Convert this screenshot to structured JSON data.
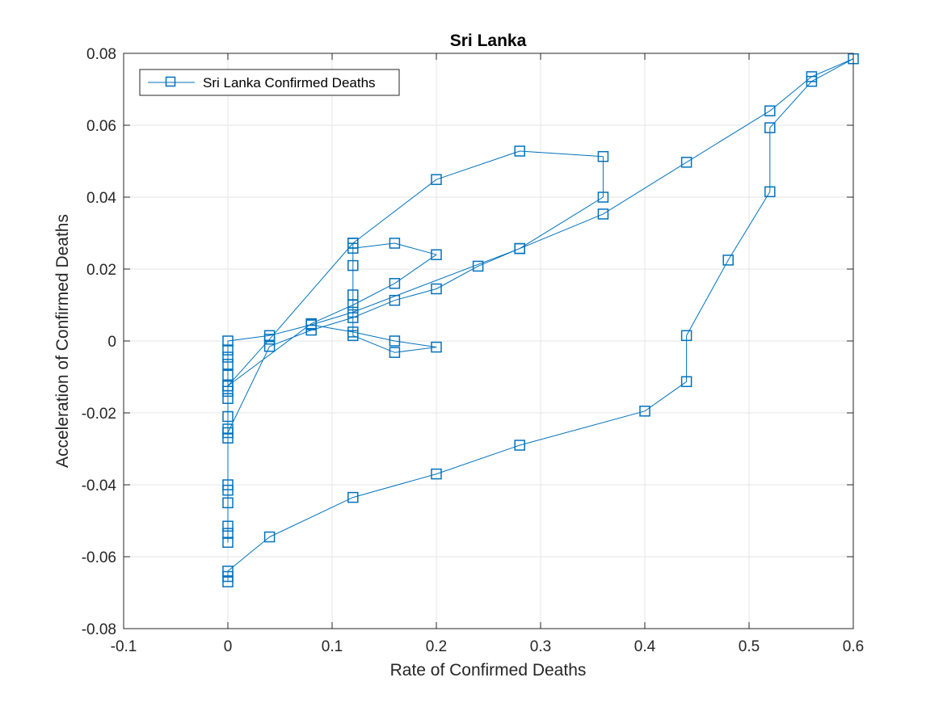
{
  "chart_data": {
    "type": "line",
    "title": "Sri Lanka",
    "xlabel": "Rate of Confirmed Deaths",
    "ylabel": "Acceleration of Confirmed Deaths",
    "xlim": [
      -0.1,
      0.6
    ],
    "ylim": [
      -0.08,
      0.08
    ],
    "x_ticks": [
      -0.1,
      0,
      0.1,
      0.2,
      0.3,
      0.4,
      0.5,
      0.6
    ],
    "x_tick_labels": [
      "-0.1",
      "0",
      "0.1",
      "0.2",
      "0.3",
      "0.4",
      "0.5",
      "0.6"
    ],
    "y_ticks": [
      -0.08,
      -0.06,
      -0.04,
      -0.02,
      0,
      0.02,
      0.04,
      0.06,
      0.08
    ],
    "y_tick_labels": [
      "-0.08",
      "-0.06",
      "-0.04",
      "-0.02",
      "0",
      "0.02",
      "0.04",
      "0.06",
      "0.08"
    ],
    "grid": true,
    "legend_position": "top-left",
    "marker": "square",
    "series_color": "#0072BD",
    "series": [
      {
        "name": "Sri Lanka Confirmed Deaths",
        "points": [
          [
            0,
            -0.067
          ],
          [
            0,
            -0.0655
          ],
          [
            0,
            -0.064
          ],
          [
            0.04,
            -0.0545
          ],
          [
            0.12,
            -0.0435
          ],
          [
            0.2,
            -0.037
          ],
          [
            0.28,
            -0.029
          ],
          [
            0.4,
            -0.0195
          ],
          [
            0.44,
            -0.0113
          ],
          [
            0.44,
            0.0015
          ],
          [
            0.48,
            0.0225
          ],
          [
            0.52,
            0.0415
          ],
          [
            0.52,
            0.0593
          ],
          [
            0.56,
            0.0722
          ],
          [
            0.6,
            0.0785
          ],
          [
            0.56,
            0.0735
          ],
          [
            0.52,
            0.064
          ],
          [
            0.44,
            0.0497
          ],
          [
            0.36,
            0.0353
          ],
          [
            0.28,
            0.0257
          ],
          [
            0.24,
            0.0208
          ],
          [
            0.2,
            0.0145
          ],
          [
            0.16,
            0.0113
          ],
          [
            0.12,
            0.0065
          ],
          [
            0.08,
            0.003
          ],
          [
            0.04,
            -0.0015
          ],
          [
            0,
            -0.0255
          ],
          [
            0,
            -0.056
          ],
          [
            0,
            -0.0535
          ],
          [
            0,
            -0.0515
          ],
          [
            0,
            -0.045
          ],
          [
            0,
            -0.0415
          ],
          [
            0,
            -0.04
          ],
          [
            0,
            -0.027
          ],
          [
            0,
            -0.0245
          ],
          [
            0,
            -0.021
          ],
          [
            0,
            -0.016
          ],
          [
            0,
            -0.014
          ],
          [
            0,
            -0.0125
          ],
          [
            0.08,
            0.0048
          ],
          [
            0.12,
            0.01
          ],
          [
            0.16,
            0.016
          ],
          [
            0.2,
            0.024
          ],
          [
            0.16,
            0.0272
          ],
          [
            0.12,
            0.0258
          ],
          [
            0.12,
            0.0272
          ],
          [
            0.12,
            0.021
          ],
          [
            0.12,
            0.0128
          ],
          [
            0.12,
            0.0015
          ],
          [
            0.16,
            -0.0032
          ],
          [
            0.2,
            -0.0017
          ],
          [
            0.16,
            0
          ],
          [
            0.12,
            0.0025
          ],
          [
            0.08,
            0.0045
          ],
          [
            0.04,
            0.0015
          ],
          [
            0,
            0
          ],
          [
            0,
            -0.0025
          ],
          [
            0,
            -0.0045
          ],
          [
            0,
            -0.0065
          ],
          [
            0,
            -0.0095
          ],
          [
            0,
            -0.0125
          ],
          [
            0.04,
            0.0005
          ],
          [
            0.12,
            0.0272
          ],
          [
            0.2,
            0.0449
          ],
          [
            0.28,
            0.0528
          ],
          [
            0.36,
            0.0513
          ],
          [
            0.36,
            0.04
          ],
          [
            0.28,
            0.0257
          ],
          [
            0.12,
            0.008
          ],
          [
            0.08,
            0.0045
          ]
        ]
      }
    ]
  }
}
